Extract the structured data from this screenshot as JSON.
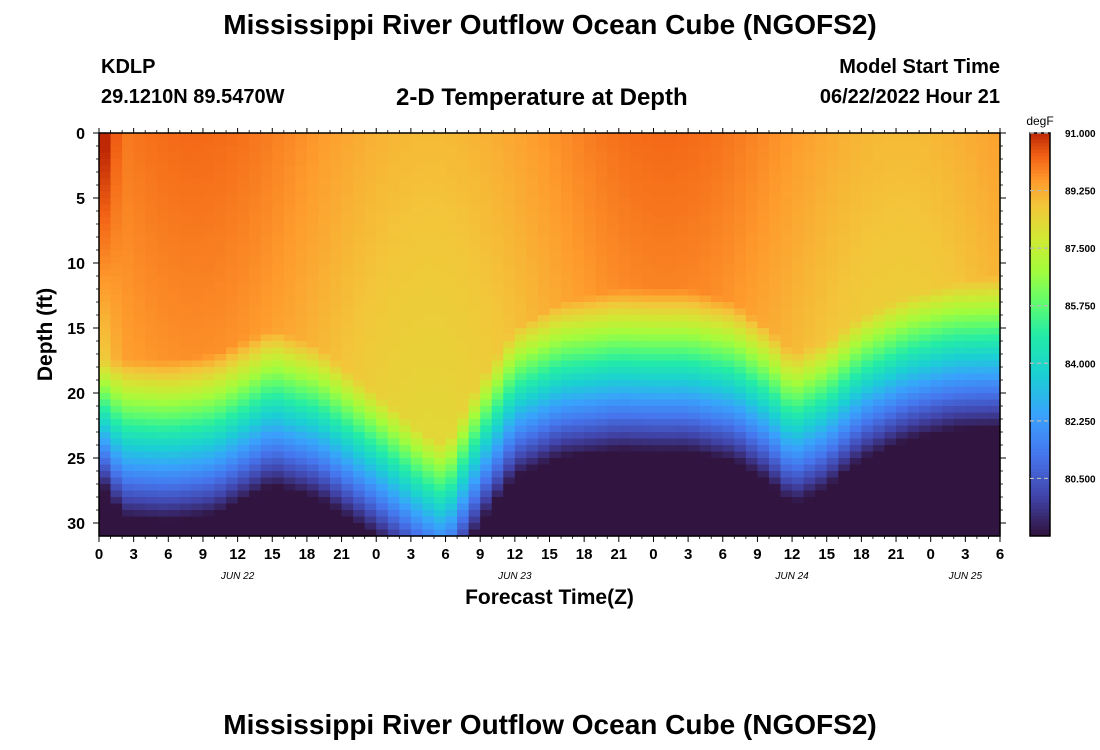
{
  "header": {
    "title": "Mississippi River Outflow Ocean Cube (NGOFS2)",
    "station_id": "KDLP",
    "station_coords": "29.1210N  89.5470W",
    "subtitle": "2-D Temperature at Depth",
    "model_start_label": "Model Start Time",
    "model_start_value": "06/22/2022 Hour 21"
  },
  "footer": {
    "title": "Mississippi River Outflow Ocean Cube (NGOFS2)"
  },
  "chart_data": {
    "type": "heatmap",
    "xlabel": "Forecast Time(Z)",
    "ylabel": "Depth (ft)",
    "x_range_hours": [
      0,
      78
    ],
    "x_ticks": [
      "0",
      "3",
      "6",
      "9",
      "12",
      "15",
      "18",
      "21",
      "0",
      "3",
      "6",
      "9",
      "12",
      "15",
      "18",
      "21",
      "0",
      "3",
      "6",
      "9",
      "12",
      "15",
      "18",
      "21",
      "0",
      "3",
      "6"
    ],
    "date_labels": [
      {
        "hour": 12,
        "label": "JUN 22"
      },
      {
        "hour": 36,
        "label": "JUN 23"
      },
      {
        "hour": 60,
        "label": "JUN 24"
      },
      {
        "hour": 75,
        "label": "JUN 25"
      }
    ],
    "y_range": [
      0,
      31
    ],
    "y_inverted": true,
    "y_ticks": [
      0,
      5,
      10,
      15,
      20,
      25,
      30
    ],
    "colorbar": {
      "unit": "degF",
      "min": 78.75,
      "max": 91.0,
      "tick_values": [
        91.0,
        89.25,
        87.5,
        85.75,
        84.0,
        82.25,
        80.5
      ],
      "tick_labels": [
        "91.000",
        "89.250",
        "87.500",
        "85.750",
        "84.000",
        "82.250",
        "80.500"
      ]
    },
    "time_step_hours": 1,
    "depth_step_ft": 0.5,
    "field_description_note": "",
    "series": [
      {
        "values_description": "",
        "thermocline_top_ft_at_hour": [
          [
            0,
            17.5
          ],
          [
            6,
            17.5
          ],
          [
            10,
            17
          ],
          [
            15,
            15
          ],
          [
            19,
            16.5
          ],
          [
            24,
            20
          ],
          [
            28,
            23
          ],
          [
            30,
            24
          ],
          [
            33,
            19
          ],
          [
            36,
            15
          ],
          [
            40,
            13
          ],
          [
            45,
            12
          ],
          [
            51,
            12
          ],
          [
            55,
            13
          ],
          [
            58,
            15
          ],
          [
            60,
            17
          ],
          [
            63,
            16
          ],
          [
            66,
            14
          ],
          [
            70,
            12.5
          ],
          [
            74,
            11.5
          ],
          [
            78,
            11
          ]
        ],
        "surface_max_degF": 91.0,
        "bottom_min_degF": 78.8
      }
    ]
  }
}
